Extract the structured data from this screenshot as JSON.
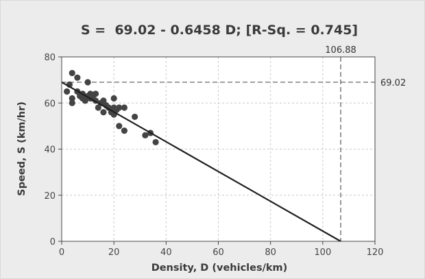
{
  "chart_data": {
    "type": "scatter",
    "title": "S =  69.02 - 0.6458 D; [R-Sq. = 0.745]",
    "xlabel": "Density, D (vehicles/km)",
    "ylabel": "Speed, S (km/hr)",
    "xlim": [
      0,
      120
    ],
    "ylim": [
      0,
      80
    ],
    "xticks": [
      0,
      20,
      40,
      60,
      80,
      100,
      120
    ],
    "yticks": [
      0,
      20,
      40,
      60,
      80
    ],
    "grid": true,
    "colors": {
      "points": "#444444",
      "line": "#1f1f1f",
      "grid": "#c8c8c8",
      "plot_background": "#ffffff",
      "frame_background": "#ececec",
      "text": "#3a3a3a"
    },
    "regression_line": {
      "intercept": 69.02,
      "slope": -0.6458
    },
    "annotations": {
      "x_intercept_label": "106.88",
      "x_intercept_value": 106.88,
      "y_intercept_label": "69.02",
      "y_intercept_value": 69.02
    },
    "points": [
      {
        "x": 2,
        "y": 65
      },
      {
        "x": 3,
        "y": 68
      },
      {
        "x": 4,
        "y": 73
      },
      {
        "x": 4,
        "y": 60
      },
      {
        "x": 4,
        "y": 62
      },
      {
        "x": 6,
        "y": 71
      },
      {
        "x": 6,
        "y": 65
      },
      {
        "x": 7,
        "y": 63
      },
      {
        "x": 8,
        "y": 64
      },
      {
        "x": 8,
        "y": 62
      },
      {
        "x": 9,
        "y": 61
      },
      {
        "x": 10,
        "y": 69
      },
      {
        "x": 10,
        "y": 63
      },
      {
        "x": 11,
        "y": 64
      },
      {
        "x": 11,
        "y": 62
      },
      {
        "x": 12,
        "y": 62
      },
      {
        "x": 13,
        "y": 64
      },
      {
        "x": 13,
        "y": 61
      },
      {
        "x": 14,
        "y": 58
      },
      {
        "x": 15,
        "y": 60
      },
      {
        "x": 16,
        "y": 61
      },
      {
        "x": 16,
        "y": 56
      },
      {
        "x": 17,
        "y": 59
      },
      {
        "x": 18,
        "y": 58
      },
      {
        "x": 19,
        "y": 56
      },
      {
        "x": 20,
        "y": 62
      },
      {
        "x": 20,
        "y": 58
      },
      {
        "x": 20,
        "y": 55
      },
      {
        "x": 21,
        "y": 57
      },
      {
        "x": 22,
        "y": 58
      },
      {
        "x": 22,
        "y": 50
      },
      {
        "x": 24,
        "y": 58
      },
      {
        "x": 24,
        "y": 48
      },
      {
        "x": 28,
        "y": 54
      },
      {
        "x": 32,
        "y": 46
      },
      {
        "x": 34,
        "y": 47
      },
      {
        "x": 36,
        "y": 43
      }
    ]
  }
}
